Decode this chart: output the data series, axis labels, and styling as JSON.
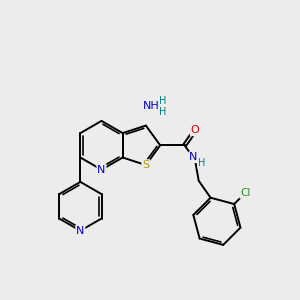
{
  "background_color": "#ececec",
  "bond_color": "#000000",
  "bond_width": 1.4,
  "atom_colors": {
    "N": "#0000cc",
    "S": "#b8960c",
    "O": "#cc0000",
    "Cl": "#228b22",
    "H_teal": "#008080",
    "C": "#000000"
  },
  "xlim": [
    -4.0,
    5.5
  ],
  "ylim": [
    -4.0,
    4.0
  ]
}
